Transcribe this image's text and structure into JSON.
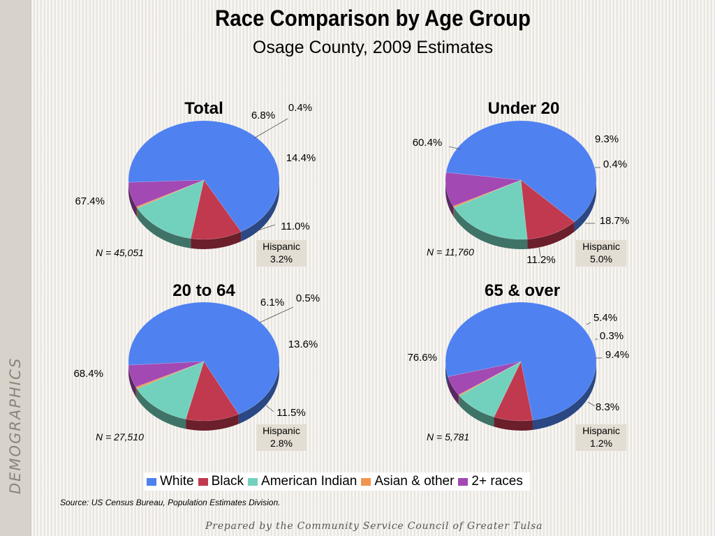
{
  "sidebar_label": "DEMOGRAPHICS",
  "title": "Race Comparison by Age Group",
  "subtitle": "Osage County, 2009 Estimates",
  "source": "Source:  US Census Bureau, Population Estimates Division.",
  "footer": "Prepared by the Community Service Council of Greater Tulsa",
  "colors": {
    "White": "#4f81f0",
    "Black": "#c0394f",
    "American Indian": "#72d1bd",
    "Asian & other": "#f09650",
    "2+ races": "#a249b4"
  },
  "legend": [
    "White",
    "Black",
    "American Indian",
    "Asian & other",
    "2+ races"
  ],
  "chart_data": [
    {
      "type": "pie",
      "title": "Total",
      "categories": [
        "White",
        "Black",
        "American Indian",
        "Asian & other",
        "2+ races"
      ],
      "values": [
        67.4,
        11.0,
        14.4,
        0.4,
        6.8
      ],
      "labels": [
        "67.4%",
        "11.0%",
        "14.4%",
        "0.4%",
        "6.8%"
      ],
      "n_label": "N = 45,051",
      "hispanic_label": "Hispanic",
      "hispanic_value": "3.2%"
    },
    {
      "type": "pie",
      "title": "Under 20",
      "categories": [
        "White",
        "Black",
        "American Indian",
        "Asian & other",
        "2+ races"
      ],
      "values": [
        60.4,
        11.2,
        18.7,
        0.4,
        9.3
      ],
      "labels": [
        "60.4%",
        "11.2%",
        "18.7%",
        "0.4%",
        "9.3%"
      ],
      "n_label": "N = 11,760",
      "hispanic_label": "Hispanic",
      "hispanic_value": "5.0%"
    },
    {
      "type": "pie",
      "title": "20 to 64",
      "categories": [
        "White",
        "Black",
        "American Indian",
        "Asian & other",
        "2+ races"
      ],
      "values": [
        68.4,
        11.5,
        13.6,
        0.5,
        6.1
      ],
      "labels": [
        "68.4%",
        "11.5%",
        "13.6%",
        "0.5%",
        "6.1%"
      ],
      "n_label": "N =  27,510",
      "hispanic_label": "Hispanic",
      "hispanic_value": "2.8%"
    },
    {
      "type": "pie",
      "title": "65 & over",
      "categories": [
        "White",
        "Black",
        "American Indian",
        "Asian & other",
        "2+ races"
      ],
      "values": [
        76.6,
        8.3,
        9.4,
        0.3,
        5.4
      ],
      "labels": [
        "76.6%",
        "8.3%",
        "9.4%",
        "0.3%",
        "5.4%"
      ],
      "n_label": "N = 5,781",
      "hispanic_label": "Hispanic",
      "hispanic_value": "1.2%"
    }
  ]
}
